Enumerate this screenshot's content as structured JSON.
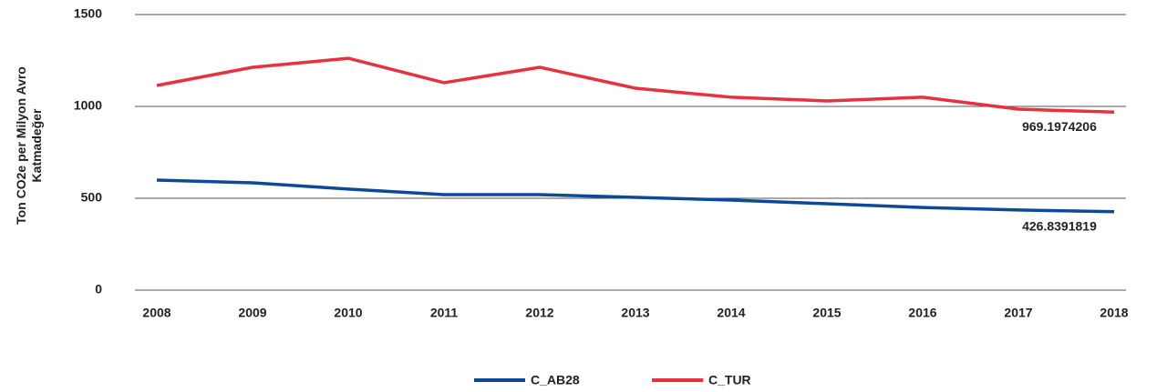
{
  "chart_data": {
    "type": "line",
    "y_label": [
      "Ton CO2e per Milyon Avro",
      "Katmadeğer"
    ],
    "categories": [
      "2008",
      "2009",
      "2010",
      "2011",
      "2012",
      "2013",
      "2014",
      "2015",
      "2016",
      "2017",
      "2018"
    ],
    "series": [
      {
        "name": "C_AB28",
        "color": "#0c4a97",
        "values": [
          599,
          584,
          550,
          520,
          520,
          505,
          490,
          470,
          450,
          436,
          426.8391819
        ]
      },
      {
        "name": "C_TUR",
        "color": "#e8313f",
        "values": [
          1114,
          1213,
          1262,
          1129,
          1213,
          1099,
          1050,
          1030,
          1050,
          985,
          969.1974206
        ]
      }
    ],
    "ylim": [
      0,
      1500
    ],
    "yticks": [
      0,
      500,
      1000,
      1500
    ],
    "grid": true
  }
}
